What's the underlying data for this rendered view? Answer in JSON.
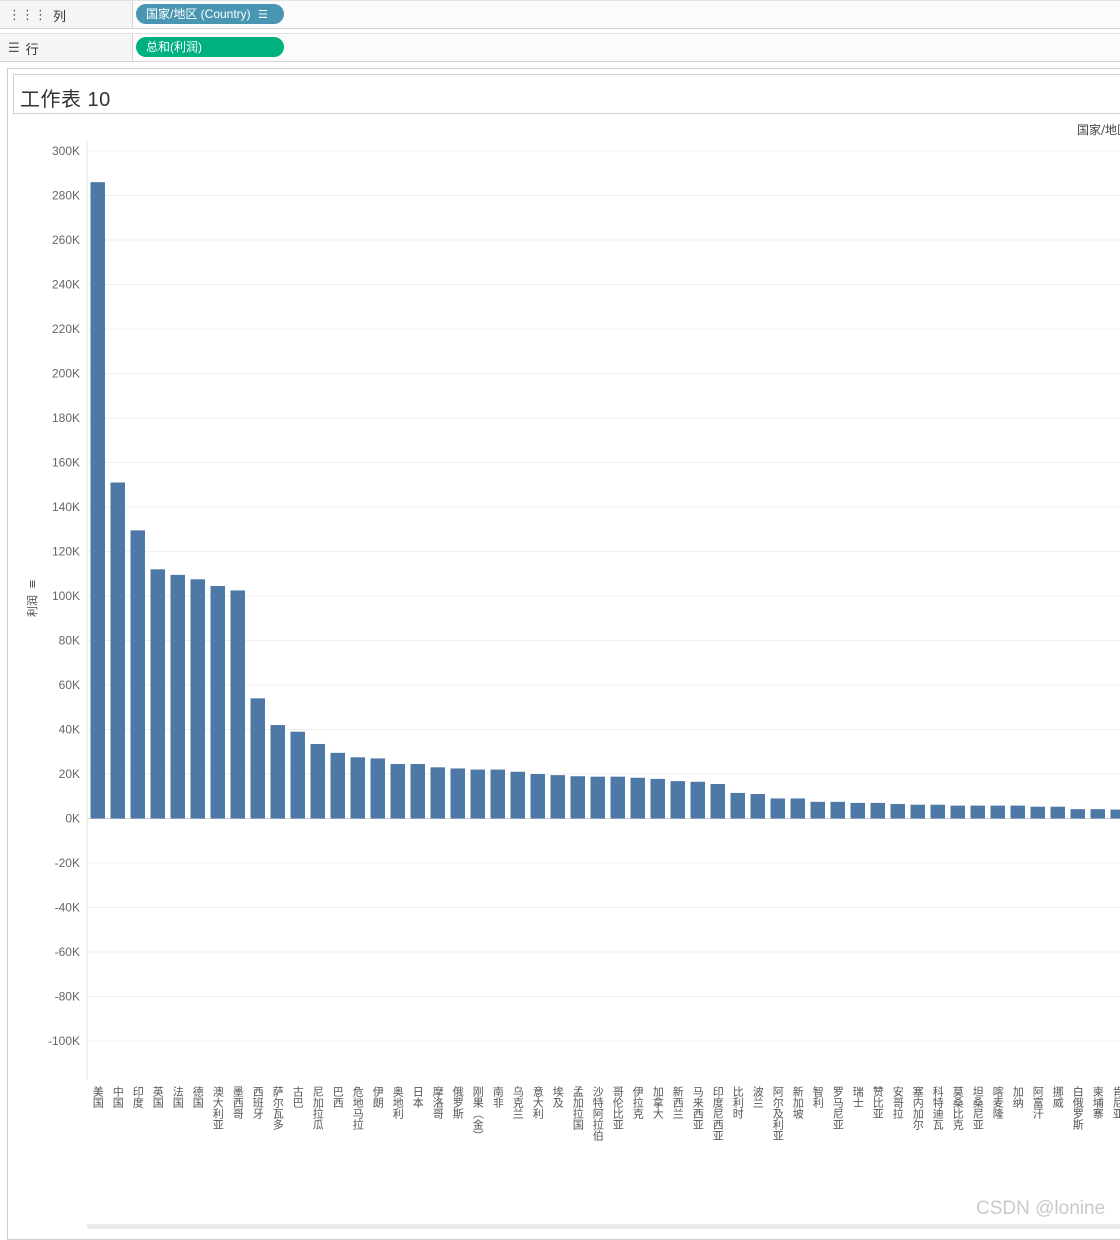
{
  "shelves": {
    "columns": {
      "label": "列",
      "pill": "国家/地区 (Country)"
    },
    "rows": {
      "label": "行",
      "pill": "总和(利润)"
    }
  },
  "sheet": {
    "title": "工作表 10",
    "column_header": "国家/地区"
  },
  "icons": {
    "columns_shelf": "columns-icon",
    "rows_shelf": "rows-icon",
    "sort": "sort-descending-icon"
  },
  "colors": {
    "bar": "#4e79a7",
    "dimension_pill": "#4996b2",
    "measure_pill": "#00b180"
  },
  "watermark": "CSDN @lonine",
  "chart_data": {
    "type": "bar",
    "ylabel": "利润",
    "ylim": [
      -120000,
      300000
    ],
    "yticks": [
      "300K",
      "280K",
      "260K",
      "240K",
      "220K",
      "200K",
      "180K",
      "160K",
      "140K",
      "120K",
      "100K",
      "80K",
      "60K",
      "40K",
      "20K",
      "0K",
      "-20K",
      "-40K",
      "-60K",
      "-80K",
      "-100K"
    ],
    "grid": true,
    "categories": [
      "美国",
      "中国",
      "印度",
      "英国",
      "法国",
      "德国",
      "澳大利亚",
      "墨西哥",
      "西班牙",
      "萨尔瓦多",
      "古巴",
      "尼加拉瓜",
      "巴西",
      "危地马拉",
      "伊朗",
      "奥地利",
      "日本",
      "摩洛哥",
      "俄罗斯",
      "刚果（金）",
      "南非",
      "乌克兰",
      "意大利",
      "埃及",
      "孟加拉国",
      "沙特阿拉伯",
      "哥伦比亚",
      "伊拉克",
      "加拿大",
      "新西兰",
      "马来西亚",
      "印度尼西亚",
      "比利时",
      "波兰",
      "阿尔及利亚",
      "新加坡",
      "智利",
      "罗马尼亚",
      "瑞士",
      "赞比亚",
      "安哥拉",
      "塞内加尔",
      "科特迪瓦",
      "莫桑比克",
      "坦桑尼亚",
      "喀麦隆",
      "加纳",
      "阿富汗",
      "挪威",
      "白俄罗斯",
      "柬埔寨",
      "肯尼亚"
    ],
    "values": [
      286000,
      151000,
      129500,
      112000,
      109500,
      107500,
      104500,
      102500,
      54000,
      42000,
      39000,
      33500,
      29500,
      27500,
      27000,
      24500,
      24500,
      23000,
      22500,
      22000,
      22000,
      21000,
      20000,
      19500,
      19000,
      18800,
      18800,
      18300,
      17800,
      16800,
      16500,
      15500,
      11500,
      11000,
      9000,
      9000,
      7500,
      7500,
      7000,
      7000,
      6500,
      6200,
      6200,
      5800,
      5800,
      5800,
      5800,
      5300,
      5300,
      4200,
      4200,
      4000
    ]
  }
}
